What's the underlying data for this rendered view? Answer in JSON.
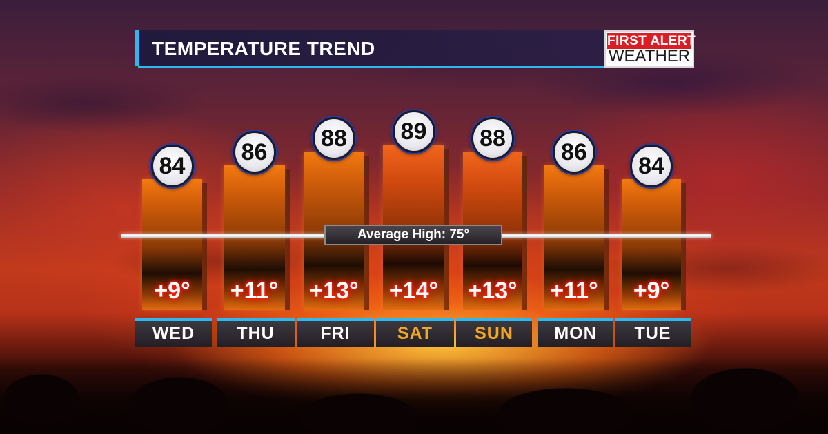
{
  "header": {
    "title": "TEMPERATURE TREND"
  },
  "brand": {
    "top": "FIRST ALERT",
    "bottom": "WEATHER"
  },
  "average_label": "Average High: 75°",
  "colors": {
    "accent": "#2fb8ef",
    "bar": "#f37a10",
    "weekday_text": "#ffffff",
    "weekend_text": "#f5a623",
    "anomaly_glow": "#ff1a1a"
  },
  "chart_data": {
    "type": "bar",
    "title": "TEMPERATURE TREND",
    "categories": [
      "WED",
      "THU",
      "FRI",
      "SAT",
      "SUN",
      "MON",
      "TUE"
    ],
    "values": [
      84,
      86,
      88,
      89,
      88,
      86,
      84
    ],
    "value_labels": [
      "84",
      "86",
      "88",
      "89",
      "88",
      "86",
      "84"
    ],
    "anomaly_labels": [
      "+9°",
      "+11°",
      "+13°",
      "+14°",
      "+13°",
      "+11°",
      "+9°"
    ],
    "weekend": [
      false,
      false,
      false,
      true,
      true,
      false,
      false
    ],
    "reference_line": {
      "value": 75,
      "label": "Average High: 75°"
    },
    "xlabel": "",
    "ylabel": "",
    "ylim": [
      65,
      92
    ],
    "grid": false,
    "legend": "none"
  }
}
